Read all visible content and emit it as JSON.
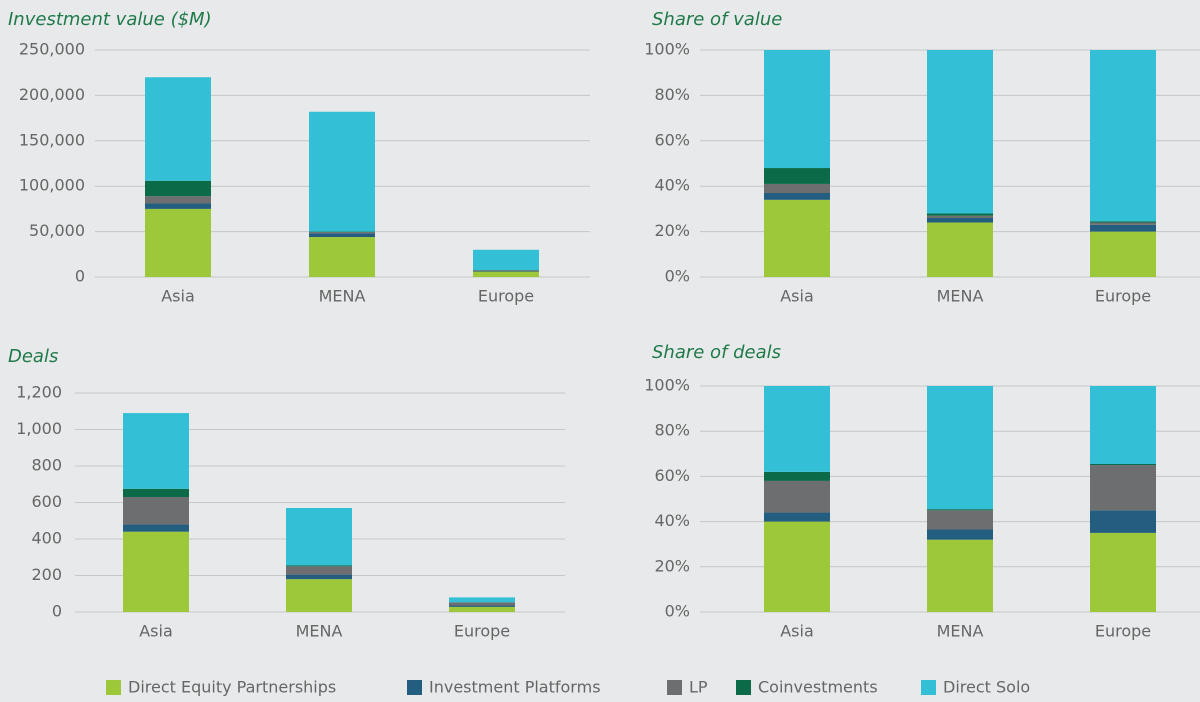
{
  "chart_data": [
    {
      "type": "bar",
      "stacked": true,
      "title": "Investment value ($M)",
      "categories": [
        "Asia",
        "MENA",
        "Europe"
      ],
      "series": [
        {
          "values": [
            75000,
            44000,
            6000
          ]
        },
        {
          "values": [
            6000,
            4000,
            1000
          ]
        },
        {
          "values": [
            8000,
            1500,
            500
          ]
        },
        {
          "values": [
            17000,
            500,
            200
          ]
        },
        {
          "values": [
            114000,
            132000,
            22300
          ]
        }
      ],
      "ylim": [
        0,
        250000
      ],
      "yticks": [
        0,
        {
          "value": 50000,
          "label": "50,000"
        },
        {
          "value": 100000,
          "label": "100,000"
        },
        {
          "value": 150000,
          "label": "150,000"
        },
        {
          "value": 200000,
          "label": "200,000"
        },
        {
          "value": 250000,
          "label": "250,000"
        }
      ],
      "grid": true
    },
    {
      "type": "bar",
      "stacked": true,
      "title": "Share of value",
      "categories": [
        "Asia",
        "MENA",
        "Europe"
      ],
      "series": [
        {
          "values": [
            34,
            24,
            20
          ]
        },
        {
          "values": [
            3,
            2,
            3
          ]
        },
        {
          "values": [
            4,
            1,
            1
          ]
        },
        {
          "values": [
            7,
            1,
            0.5
          ]
        },
        {
          "values": [
            52,
            72,
            75.5
          ]
        }
      ],
      "ylim": [
        0,
        100
      ],
      "yticks": [
        {
          "value": 0,
          "label": "0%"
        },
        {
          "value": 20,
          "label": "20%"
        },
        {
          "value": 40,
          "label": "40%"
        },
        {
          "value": 60,
          "label": "60%"
        },
        {
          "value": 80,
          "label": "80%"
        },
        {
          "value": 100,
          "label": "100%"
        }
      ],
      "grid": true
    },
    {
      "type": "bar",
      "stacked": true,
      "title": "Deals",
      "categories": [
        "Asia",
        "MENA",
        "Europe"
      ],
      "series": [
        {
          "values": [
            440,
            180,
            28
          ]
        },
        {
          "values": [
            40,
            25,
            8
          ]
        },
        {
          "values": [
            150,
            45,
            16
          ]
        },
        {
          "values": [
            45,
            5,
            1
          ]
        },
        {
          "values": [
            415,
            315,
            27
          ]
        }
      ],
      "ylim": [
        0,
        1200
      ],
      "yticks": [
        0,
        200,
        400,
        600,
        800,
        {
          "value": 1000,
          "label": "1,000"
        },
        {
          "value": 1200,
          "label": "1,200"
        }
      ],
      "grid": true
    },
    {
      "type": "bar",
      "stacked": true,
      "title": "Share of deals",
      "categories": [
        "Asia",
        "MENA",
        "Europe"
      ],
      "series": [
        {
          "values": [
            40,
            32,
            35
          ]
        },
        {
          "values": [
            4,
            4.5,
            10
          ]
        },
        {
          "values": [
            14,
            8.5,
            20
          ]
        },
        {
          "values": [
            4,
            0.5,
            0.5
          ]
        },
        {
          "values": [
            38,
            54.5,
            34.5
          ]
        }
      ],
      "ylim": [
        0,
        100
      ],
      "yticks": [
        {
          "value": 0,
          "label": "0%"
        },
        {
          "value": 20,
          "label": "20%"
        },
        {
          "value": 40,
          "label": "40%"
        },
        {
          "value": 60,
          "label": "60%"
        },
        {
          "value": 80,
          "label": "80%"
        },
        {
          "value": 100,
          "label": "100%"
        }
      ],
      "grid": true
    }
  ],
  "legend": [
    {
      "name": "Direct Equity Partnerships",
      "color": "#9dc83a"
    },
    {
      "name": "Investment Platforms",
      "color": "#235e80"
    },
    {
      "name": "LP",
      "color": "#6d6e70"
    },
    {
      "name": "Coinvestments",
      "color": "#0b6b48"
    },
    {
      "name": "Direct Solo",
      "color": "#33c0d6"
    }
  ]
}
